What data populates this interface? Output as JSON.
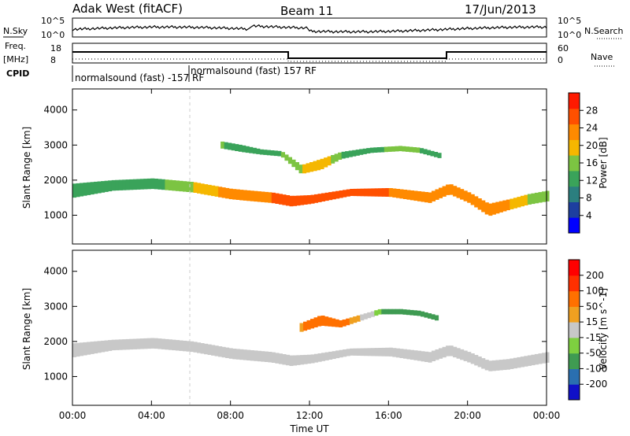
{
  "header": {
    "station": "Adak West (fitACF)",
    "beam": "Beam 11",
    "date": "17/Jun/2013"
  },
  "top_panels": {
    "nsky_label": "N.Sky",
    "nsky_ticks": [
      "10^5",
      "10^0"
    ],
    "nsearch_label": "N.Search",
    "freq_label": "Freq.",
    "freq_unit": "[MHz]",
    "freq_ticks": [
      "18",
      "8"
    ],
    "nave_ticks": [
      "60",
      "0"
    ],
    "nave_label": "Nave",
    "cpid_label": "CPID",
    "modes": [
      "normalsound (fast) -157 RF",
      "normalsound (fast) 157 RF"
    ]
  },
  "colorbars": {
    "power": {
      "title": "Power [dB]",
      "tick_labels": [
        "28",
        "24",
        "20",
        "16",
        "12",
        "8",
        "4"
      ],
      "colors": [
        "#0000ff",
        "#1d3fa0",
        "#2b7f7f",
        "#3aa35a",
        "#7cc442",
        "#f5b700",
        "#ff8a00",
        "#ff5000",
        "#ff1a00"
      ]
    },
    "velocity": {
      "title": "Velocity [m s^-1]",
      "tick_labels": [
        "200",
        "100",
        "50",
        "15",
        "-15",
        "-50",
        "-100",
        "-200"
      ],
      "colors": [
        "#1010c8",
        "#2a6fb0",
        "#3f9b52",
        "#7ed040",
        "#c8c8c8",
        "#f0a020",
        "#ff7000",
        "#ff3000",
        "#ff0000"
      ]
    }
  },
  "chart_data": [
    {
      "type": "heatmap",
      "panel": "power",
      "ylabel": "Slant Range [km]",
      "y_ticks": [
        "1000",
        "2000",
        "3000",
        "4000"
      ],
      "ylim": [
        180,
        4600
      ],
      "x_ticks": [
        "00:00",
        "04:00",
        "08:00",
        "12:00",
        "16:00",
        "20:00",
        "00:00"
      ],
      "xlim_hours": [
        0,
        24
      ],
      "bands": [
        {
          "name": "main_echo",
          "x": [
            0,
            2,
            4,
            6,
            8,
            10,
            11,
            12,
            14,
            16,
            18,
            19,
            20,
            21,
            22,
            23,
            24
          ],
          "range_center": [
            1700,
            1850,
            1900,
            1800,
            1600,
            1500,
            1400,
            1450,
            1650,
            1650,
            1500,
            1750,
            1500,
            1150,
            1300,
            1450,
            1550
          ],
          "width": [
            400,
            300,
            300,
            300,
            300,
            300,
            300,
            250,
            200,
            250,
            300,
            300,
            300,
            350,
            300,
            300,
            300
          ],
          "power_db": [
            12,
            16,
            14,
            20,
            26,
            28,
            28,
            28,
            28,
            28,
            26,
            26,
            28,
            24,
            24,
            20,
            16
          ]
        },
        {
          "name": "upper_echo",
          "x": [
            7.5,
            8.5,
            9.5,
            10.5,
            11.5,
            12.5,
            13.5,
            15,
            16.5,
            17.5,
            18.5
          ],
          "range_center": [
            3000,
            2900,
            2800,
            2750,
            2300,
            2450,
            2700,
            2850,
            2900,
            2850,
            2700
          ],
          "width": [
            200,
            200,
            150,
            150,
            250,
            300,
            200,
            150,
            150,
            150,
            150
          ],
          "power_db": [
            16,
            14,
            12,
            16,
            20,
            24,
            16,
            14,
            18,
            16,
            14
          ]
        }
      ]
    },
    {
      "type": "heatmap",
      "panel": "velocity",
      "ylabel": "Slant Range [km]",
      "y_ticks": [
        "1000",
        "2000",
        "3000",
        "4000"
      ],
      "ylim": [
        180,
        4600
      ],
      "x_ticks": [
        "00:00",
        "04:00",
        "08:00",
        "12:00",
        "16:00",
        "20:00",
        "00:00"
      ],
      "xlabel": "Time UT",
      "xlim_hours": [
        0,
        24
      ],
      "bands": [
        {
          "name": "main_echo",
          "x": [
            0,
            2,
            4,
            6,
            8,
            10,
            11,
            12,
            14,
            16,
            18,
            19,
            20,
            21,
            22,
            23,
            24
          ],
          "range_center": [
            1750,
            1900,
            1950,
            1850,
            1650,
            1550,
            1450,
            1500,
            1700,
            1700,
            1550,
            1750,
            1550,
            1300,
            1350,
            1450,
            1550
          ],
          "width": [
            400,
            300,
            300,
            300,
            300,
            300,
            300,
            250,
            200,
            250,
            300,
            300,
            300,
            300,
            300,
            300,
            300
          ],
          "velocity": [
            0,
            0,
            0,
            0,
            0,
            0,
            0,
            -10,
            0,
            0,
            0,
            0,
            0,
            0,
            0,
            0,
            0
          ]
        },
        {
          "name": "upper_echo",
          "x": [
            11.5,
            12.5,
            13.5,
            15.5,
            16.5,
            17.5,
            18.5
          ],
          "range_center": [
            2400,
            2600,
            2500,
            2850,
            2850,
            2800,
            2650
          ],
          "width": [
            250,
            300,
            200,
            150,
            150,
            150,
            150
          ],
          "velocity": [
            -40,
            -60,
            -60,
            30,
            40,
            40,
            30
          ]
        }
      ]
    }
  ]
}
